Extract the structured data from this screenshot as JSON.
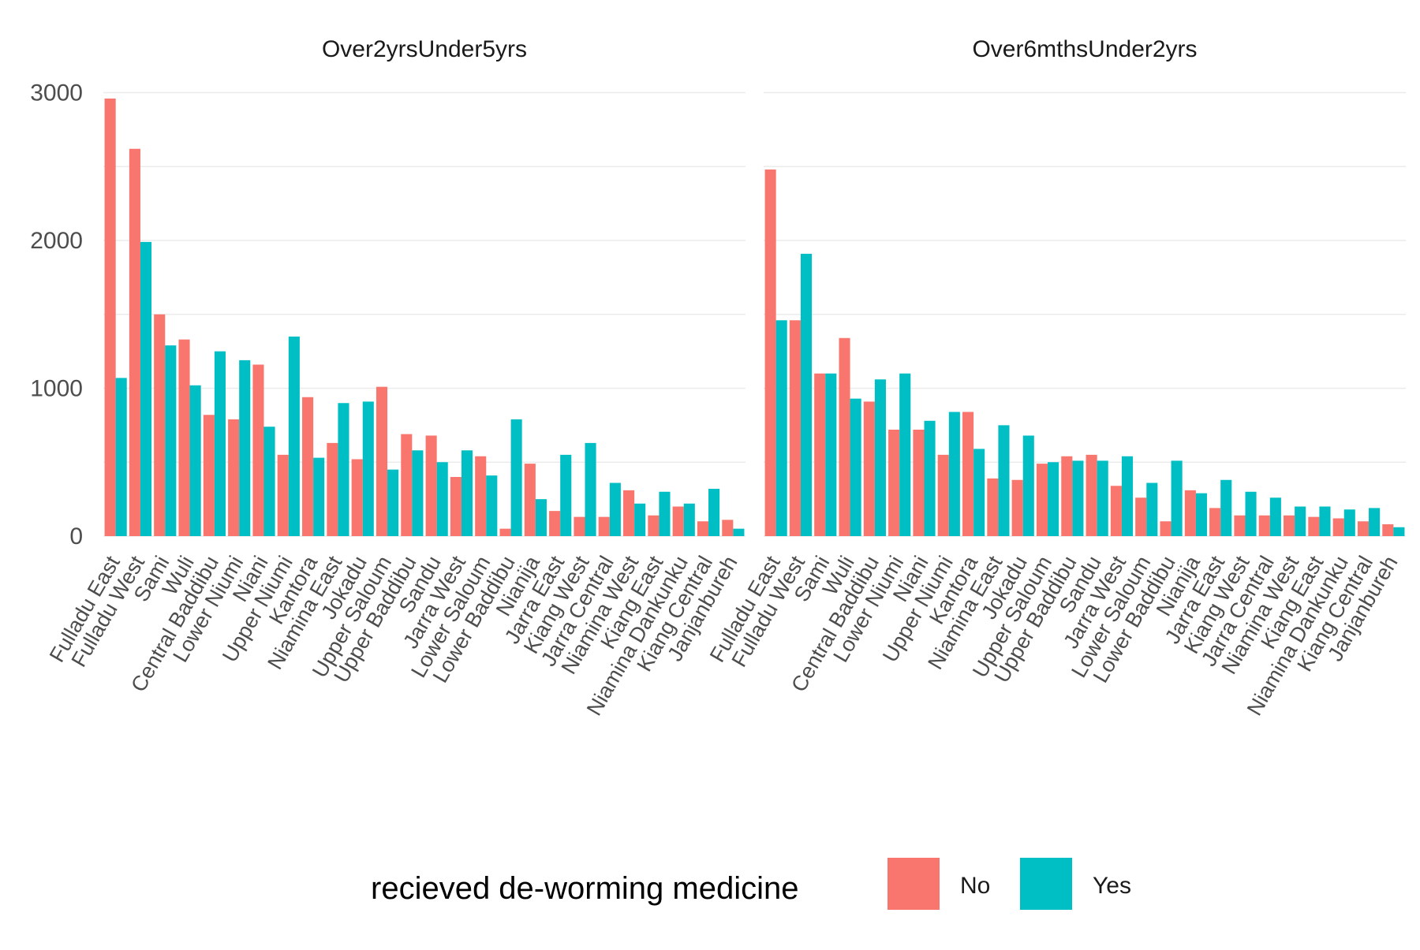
{
  "chart_data": {
    "type": "bar",
    "facet_by": "age group",
    "legend": {
      "title": "recieved de-worming medicine",
      "position": "bottom",
      "entries": [
        {
          "name": "No",
          "color": "#F8766D"
        },
        {
          "name": "Yes",
          "color": "#00BFC4"
        }
      ]
    },
    "ylim": [
      0,
      3000
    ],
    "yticks": [
      0,
      1000,
      2000,
      3000
    ],
    "grid": true,
    "xlabel": "",
    "ylabel": "",
    "categories": [
      "Fulladu East",
      "Fulladu West",
      "Sami",
      "Wuli",
      "Central Baddibu",
      "Lower Niumi",
      "Niani",
      "Upper Niumi",
      "Kantora",
      "Niamina East",
      "Jokadu",
      "Upper Saloum",
      "Upper Baddibu",
      "Sandu",
      "Jarra West",
      "Lower Saloum",
      "Lower Baddibu",
      "Nianija",
      "Jarra East",
      "Kiang West",
      "Jarra Central",
      "Niamina West",
      "Kiang East",
      "Niamina Dankunku",
      "Kiang Central",
      "Janjanbureh"
    ],
    "panels": [
      {
        "title": "Over2yrsUnder5yrs",
        "series": [
          {
            "name": "No",
            "values": [
              2960,
              2620,
              1500,
              1330,
              820,
              790,
              1160,
              550,
              940,
              630,
              520,
              1010,
              690,
              680,
              400,
              540,
              50,
              490,
              170,
              130,
              130,
              310,
              140,
              200,
              100,
              110
            ]
          },
          {
            "name": "Yes",
            "values": [
              1070,
              1990,
              1290,
              1020,
              1250,
              1190,
              740,
              1350,
              530,
              900,
              910,
              450,
              580,
              500,
              580,
              410,
              790,
              250,
              550,
              630,
              360,
              220,
              300,
              220,
              320,
              50
            ]
          }
        ]
      },
      {
        "title": "Over6mthsUnder2yrs",
        "series": [
          {
            "name": "No",
            "values": [
              2480,
              1460,
              1100,
              1340,
              910,
              720,
              720,
              550,
              840,
              390,
              380,
              490,
              540,
              550,
              340,
              260,
              100,
              310,
              190,
              140,
              140,
              140,
              130,
              120,
              100,
              80
            ]
          },
          {
            "name": "Yes",
            "values": [
              1460,
              1910,
              1100,
              930,
              1060,
              1100,
              780,
              840,
              590,
              750,
              680,
              500,
              510,
              510,
              540,
              360,
              510,
              290,
              380,
              300,
              260,
              200,
              200,
              180,
              190,
              60
            ]
          }
        ]
      }
    ]
  }
}
